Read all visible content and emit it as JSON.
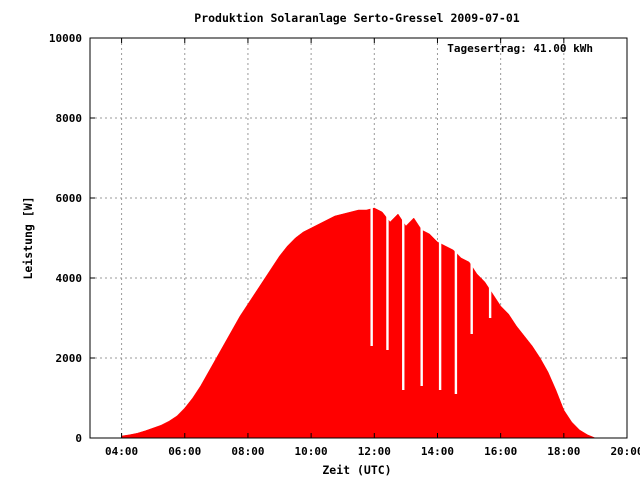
{
  "chart_data": {
    "type": "area",
    "title": "Produktion Solaranlage Serto-Gressel 2009-07-01",
    "xlabel": "Zeit (UTC)",
    "ylabel": "Leistung [W]",
    "annotation": "Tagesertrag: 41.00 kWh",
    "grid": true,
    "xlim": [
      "03:00",
      "20:00"
    ],
    "ylim": [
      0,
      10000
    ],
    "x_ticks": [
      "04:00",
      "06:00",
      "08:00",
      "10:00",
      "12:00",
      "14:00",
      "16:00",
      "18:00",
      "20:00"
    ],
    "y_ticks": [
      "0",
      "2000",
      "4000",
      "6000",
      "8000",
      "10000"
    ],
    "colors": {
      "series": "#ff0000",
      "grid": "#999999",
      "axis": "#000000"
    },
    "series": [
      {
        "x": [
          "04:00",
          "04:15",
          "04:30",
          "04:45",
          "05:00",
          "05:15",
          "05:30",
          "05:45",
          "06:00",
          "06:15",
          "06:30",
          "06:45",
          "07:00",
          "07:15",
          "07:30",
          "07:45",
          "08:00",
          "08:15",
          "08:30",
          "08:45",
          "09:00",
          "09:15",
          "09:30",
          "09:45",
          "10:00",
          "10:15",
          "10:30",
          "10:45",
          "11:00",
          "11:15",
          "11:30",
          "11:45",
          "12:00",
          "12:15",
          "12:30",
          "12:45",
          "13:00",
          "13:15",
          "13:30",
          "13:45",
          "14:00",
          "14:15",
          "14:30",
          "14:45",
          "15:00",
          "15:15",
          "15:30",
          "15:45",
          "16:00",
          "16:15",
          "16:30",
          "16:45",
          "17:00",
          "17:15",
          "17:30",
          "17:45",
          "18:00",
          "18:15",
          "18:30",
          "18:45",
          "19:00"
        ],
        "values": [
          50,
          80,
          120,
          180,
          250,
          320,
          420,
          550,
          750,
          1000,
          1300,
          1650,
          2000,
          2350,
          2700,
          3050,
          3350,
          3650,
          3950,
          4250,
          4550,
          4800,
          5000,
          5150,
          5250,
          5350,
          5450,
          5550,
          5600,
          5650,
          5700,
          5700,
          5750,
          5650,
          5400,
          5600,
          5300,
          5500,
          5200,
          5100,
          4900,
          4800,
          4700,
          4500,
          4400,
          4100,
          3900,
          3600,
          3300,
          3100,
          2800,
          2550,
          2300,
          2000,
          1650,
          1200,
          700,
          400,
          200,
          80,
          0
        ]
      }
    ],
    "drops": [
      {
        "x": "11:55",
        "value": 2300
      },
      {
        "x": "12:25",
        "value": 2200
      },
      {
        "x": "12:55",
        "value": 1200
      },
      {
        "x": "13:30",
        "value": 1300
      },
      {
        "x": "14:05",
        "value": 1200
      },
      {
        "x": "14:35",
        "value": 1100
      },
      {
        "x": "15:05",
        "value": 2600
      },
      {
        "x": "15:40",
        "value": 3000
      }
    ]
  }
}
